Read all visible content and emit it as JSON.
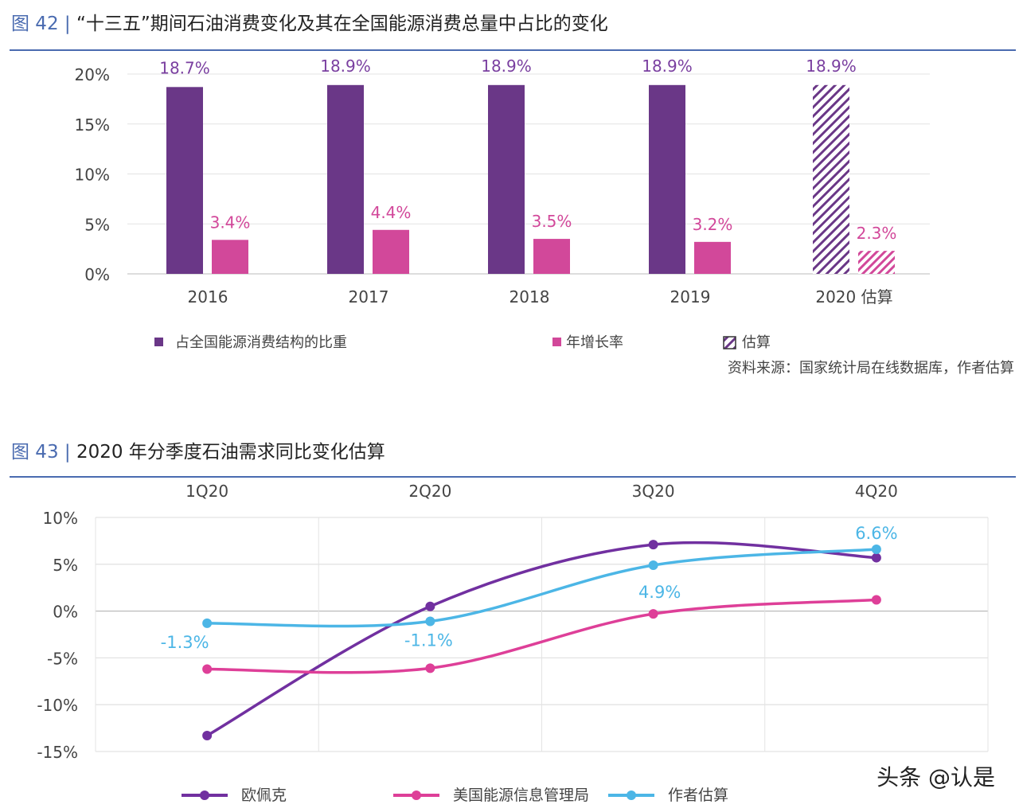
{
  "fig42": {
    "label": "图 42 |",
    "title": "“十三五”期间石油消费变化及其在全国能源消费总量中占比的变化",
    "source": "资料来源：国家统计局在线数据库，作者估算",
    "legend": [
      "占全国能源消费结构的比重",
      "年增长率",
      "估算"
    ]
  },
  "fig43": {
    "label": "图 43 |",
    "title": "2020 年分季度石油需求同比变化估算"
  },
  "watermark": "头条 @认是",
  "colors": {
    "accent": "#4a6bb0",
    "share": "#6a3787",
    "growth": "#d2489a",
    "opec": "#7130a0",
    "eia": "#de3f98",
    "author": "#4cb6e6"
  },
  "chart_data": [
    {
      "type": "bar",
      "categories": [
        "2016",
        "2017",
        "2018",
        "2019",
        "2020 估算"
      ],
      "series": [
        {
          "name": "占全国能源消费结构的比重",
          "values": [
            18.7,
            18.9,
            18.9,
            18.9,
            18.9
          ],
          "labels": [
            "18.7%",
            "18.9%",
            "18.9%",
            "18.9%",
            "18.9%"
          ]
        },
        {
          "name": "年增长率",
          "values": [
            3.4,
            4.4,
            3.5,
            3.2,
            2.3
          ],
          "labels": [
            "3.4%",
            "4.4%",
            "3.5%",
            "3.2%",
            "2.3%"
          ]
        }
      ],
      "estimated_category": "2020 估算",
      "yticks": [
        "0%",
        "5%",
        "10%",
        "15%",
        "20%"
      ],
      "ylim": [
        0,
        20
      ],
      "grid": true,
      "legend_position": "bottom"
    },
    {
      "type": "line",
      "categories": [
        "1Q20",
        "2Q20",
        "3Q20",
        "4Q20"
      ],
      "series": [
        {
          "name": "欧佩克",
          "values": [
            -13.3,
            0.5,
            7.1,
            5.7
          ]
        },
        {
          "name": "美国能源信息管理局",
          "values": [
            -6.2,
            -6.1,
            -0.3,
            1.2
          ]
        },
        {
          "name": "作者估算",
          "values": [
            -1.3,
            -1.1,
            4.9,
            6.6
          ],
          "labels": [
            "-1.3%",
            "-1.1%",
            "4.9%",
            "6.6%"
          ]
        }
      ],
      "yticks": [
        "-15%",
        "-10%",
        "-5%",
        "0%",
        "5%",
        "10%"
      ],
      "ylim": [
        -15,
        10
      ],
      "grid": true,
      "xaxis_position": "top",
      "legend_position": "bottom"
    }
  ]
}
